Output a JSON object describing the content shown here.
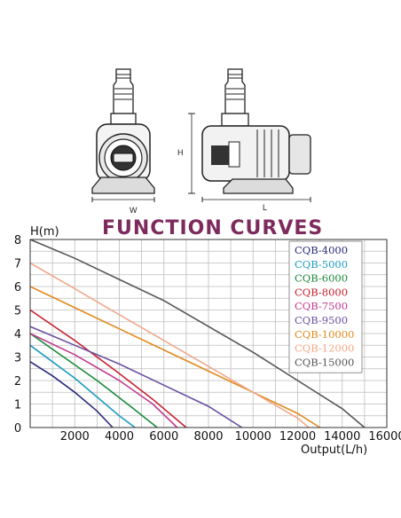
{
  "product": {
    "front_view_dimension": "W",
    "side_view_height_dimension": "H",
    "side_view_length_dimension": "L"
  },
  "chart_data": {
    "type": "line",
    "title": "FUNCTION CURVES",
    "xlabel": "Output(L/h)",
    "ylabel": "H(m)",
    "xlim": [
      0,
      16000
    ],
    "ylim": [
      0,
      8
    ],
    "x_ticks": [
      "2000",
      "4000",
      "6000",
      "8000",
      "10000",
      "12000",
      "14000",
      "16000"
    ],
    "y_ticks": [
      "0",
      "1",
      "2",
      "3",
      "4",
      "5",
      "6",
      "7",
      "8"
    ],
    "grid": true,
    "legend_position": "top-right",
    "series": [
      {
        "name": "CQB-4000",
        "color": "#2b2b7a",
        "x": [
          0,
          1000,
          2000,
          3000,
          3700
        ],
        "y": [
          2.8,
          2.2,
          1.5,
          0.7,
          0
        ]
      },
      {
        "name": "CQB-5000",
        "color": "#1a9cc0",
        "x": [
          0,
          1000,
          2000,
          3000,
          4000,
          4700
        ],
        "y": [
          3.5,
          2.8,
          2.1,
          1.3,
          0.5,
          0
        ]
      },
      {
        "name": "CQB-6000",
        "color": "#1a8a3a",
        "x": [
          0,
          1500,
          3000,
          4500,
          5700
        ],
        "y": [
          4.0,
          3.0,
          2.0,
          0.9,
          0
        ]
      },
      {
        "name": "CQB-8000",
        "color": "#c8202e",
        "x": [
          0,
          2000,
          4000,
          5500,
          7000
        ],
        "y": [
          5.0,
          3.7,
          2.3,
          1.2,
          0
        ]
      },
      {
        "name": "CQB-7500",
        "color": "#c23a8e",
        "x": [
          0,
          2000,
          4000,
          5500,
          6600
        ],
        "y": [
          4.0,
          3.1,
          2.0,
          1.0,
          0
        ]
      },
      {
        "name": "CQB-9500",
        "color": "#6a4fa0",
        "x": [
          0,
          2000,
          4000,
          6000,
          8000,
          9500
        ],
        "y": [
          4.3,
          3.5,
          2.7,
          1.8,
          0.9,
          0
        ]
      },
      {
        "name": "CQB-10000",
        "color": "#e08a1e",
        "x": [
          0,
          2000,
          4000,
          6000,
          8000,
          10000,
          12000,
          13000
        ],
        "y": [
          6.0,
          5.1,
          4.2,
          3.3,
          2.4,
          1.5,
          0.6,
          0
        ]
      },
      {
        "name": "CQB-12000",
        "color": "#f0a88a",
        "x": [
          0,
          2000,
          4000,
          6000,
          8000,
          10000,
          12000,
          12500
        ],
        "y": [
          7.0,
          5.9,
          4.8,
          3.7,
          2.6,
          1.5,
          0.4,
          0
        ]
      },
      {
        "name": "CQB-15000",
        "color": "#555555",
        "x": [
          0,
          2000,
          4000,
          6000,
          8000,
          10000,
          12000,
          14000,
          15000
        ],
        "y": [
          8.0,
          7.2,
          6.3,
          5.4,
          4.3,
          3.2,
          2.0,
          0.8,
          0
        ]
      }
    ]
  }
}
